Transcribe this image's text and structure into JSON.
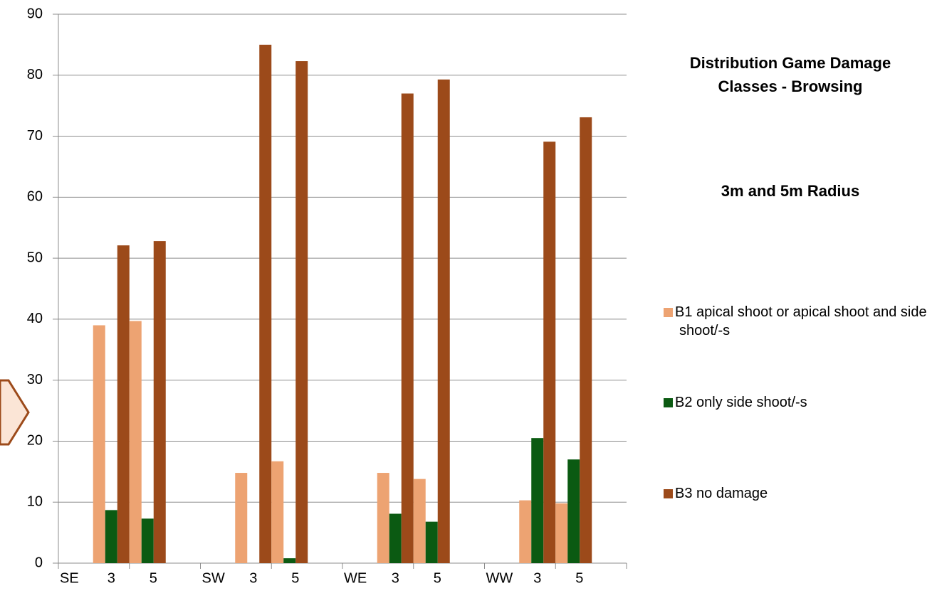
{
  "chart_data": {
    "type": "bar",
    "title": "Distribution Game Damage Classes - Browsing",
    "subtitle": "3m and 5m Radius",
    "groups": [
      "SE",
      "SW",
      "WE",
      "WW"
    ],
    "categories": [
      "3",
      "5",
      "3",
      "5",
      "3",
      "5",
      "3",
      "5"
    ],
    "series": [
      {
        "name": "B1 apical shoot or apical shoot and side shoot/-s",
        "color": "#eda372",
        "values": [
          39,
          39.7,
          14.8,
          16.7,
          14.8,
          13.8,
          10.3,
          9.8
        ]
      },
      {
        "name": "B2 only side shoot/-s",
        "color": "#0b5a12",
        "values": [
          8.7,
          7.3,
          0,
          0.8,
          8.1,
          6.8,
          20.5,
          17
        ]
      },
      {
        "name": "B3 no damage",
        "color": "#9c4a1a",
        "values": [
          52.1,
          52.8,
          85,
          82.3,
          77,
          79.3,
          69.1,
          73.1
        ]
      }
    ],
    "ylim": [
      0,
      90
    ],
    "yticks": [
      0,
      10,
      20,
      30,
      40,
      50,
      60,
      70,
      80,
      90
    ],
    "grid": true,
    "legend": "right"
  }
}
